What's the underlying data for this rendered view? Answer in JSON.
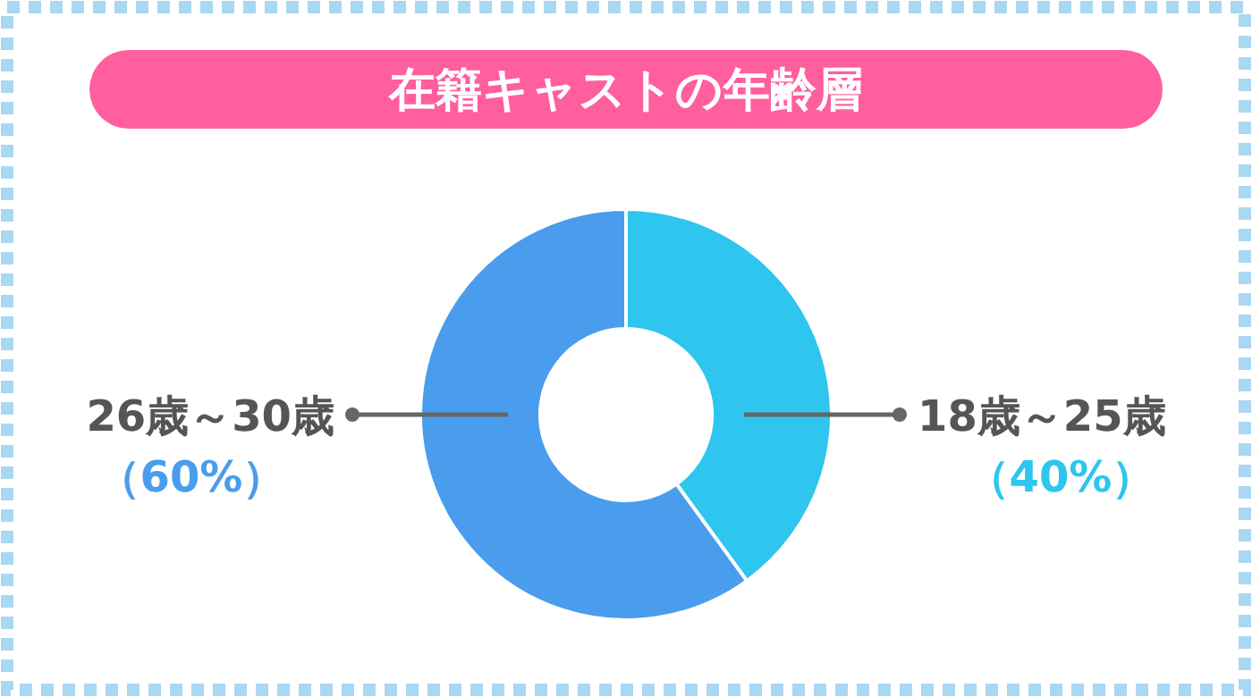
{
  "chart_data": {
    "type": "donut",
    "title": "在籍キャストの年齢層",
    "categories": [
      "18歳～25歳",
      "26歳～30歳"
    ],
    "values": [
      40,
      60
    ],
    "colors": [
      "#2ec5ef",
      "#4a9ded"
    ],
    "value_labels": [
      "（40%）",
      "（60%）"
    ]
  }
}
